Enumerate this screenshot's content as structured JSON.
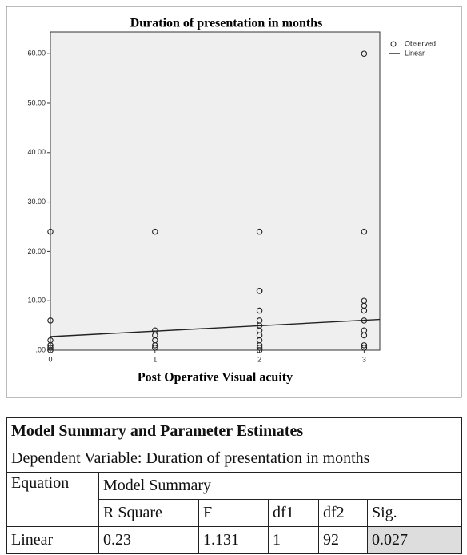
{
  "chart_data": {
    "type": "scatter",
    "title": "Duration of presentation in months",
    "x_label": "Post Operative Visual acuity",
    "xlim": [
      0,
      3.15
    ],
    "xticks": [
      0,
      1,
      2,
      3
    ],
    "ylim": [
      0,
      64.4
    ],
    "yticks": [
      {
        "value": 0,
        "label": ".00"
      },
      {
        "value": 10,
        "label": "10.00"
      },
      {
        "value": 20,
        "label": "20.00"
      },
      {
        "value": 30,
        "label": "30.00"
      },
      {
        "value": 40,
        "label": "40.00"
      },
      {
        "value": 50,
        "label": "50.00"
      },
      {
        "value": 60,
        "label": "60.00"
      }
    ],
    "legend": "top-right outside",
    "series": [
      {
        "name": "Observed",
        "color": "#222222",
        "mark": "circle",
        "x": [
          0,
          0,
          0,
          0,
          0,
          0,
          1,
          1,
          1,
          1,
          1,
          1,
          2,
          2,
          2,
          2,
          2,
          2,
          2,
          2,
          2,
          2,
          2,
          2,
          3,
          3,
          3,
          3,
          3,
          3,
          3,
          3,
          3,
          3
        ],
        "values": [
          24,
          6,
          2,
          1,
          0.5,
          0,
          24,
          4,
          3,
          2,
          1,
          0.5,
          24,
          12,
          12,
          8,
          6,
          5,
          4,
          3,
          2,
          1,
          0.5,
          0,
          60,
          24,
          10,
          9,
          8,
          6,
          4,
          3,
          1,
          0.5
        ]
      },
      {
        "name": "Linear",
        "color": "#222222",
        "mark": "line",
        "x": [
          0,
          3.15
        ],
        "values": [
          2.75,
          6.22
        ]
      }
    ]
  },
  "table": {
    "title": "Model Summary and Parameter Estimates",
    "subtitle": "Dependent Variable: Duration of presentation in months",
    "equation_header": "Equation",
    "group_header": "Model Summary",
    "columns": [
      "R Square",
      "F",
      "df1",
      "df2",
      "Sig."
    ],
    "rows": [
      [
        "Linear",
        0.23,
        1.131,
        1,
        92,
        0.027
      ]
    ]
  }
}
